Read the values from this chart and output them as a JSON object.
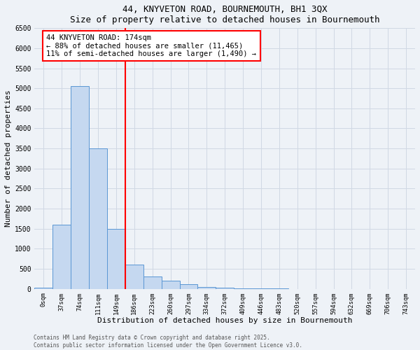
{
  "title1": "44, KNYVETON ROAD, BOURNEMOUTH, BH1 3QX",
  "title2": "Size of property relative to detached houses in Bournemouth",
  "xlabel": "Distribution of detached houses by size in Bournemouth",
  "ylabel": "Number of detached properties",
  "bar_labels": [
    "0sqm",
    "37sqm",
    "74sqm",
    "111sqm",
    "149sqm",
    "186sqm",
    "223sqm",
    "260sqm",
    "297sqm",
    "334sqm",
    "372sqm",
    "409sqm",
    "446sqm",
    "483sqm",
    "520sqm",
    "557sqm",
    "594sqm",
    "632sqm",
    "669sqm",
    "706sqm",
    "743sqm"
  ],
  "bar_heights": [
    30,
    1600,
    5050,
    3500,
    1500,
    600,
    300,
    200,
    120,
    50,
    30,
    15,
    8,
    3,
    0,
    0,
    0,
    0,
    0,
    0,
    0
  ],
  "bar_color": "#c5d8f0",
  "bar_edge_color": "#5a96d4",
  "vline_x_bin": 5,
  "vline_color": "red",
  "annotation_text": "44 KNYVETON ROAD: 174sqm\n← 88% of detached houses are smaller (11,465)\n11% of semi-detached houses are larger (1,490) →",
  "annotation_box_color": "white",
  "annotation_box_edge": "red",
  "ylim": [
    0,
    6500
  ],
  "ytick_interval": 500,
  "footer1": "Contains HM Land Registry data © Crown copyright and database right 2025.",
  "footer2": "Contains public sector information licensed under the Open Government Licence v3.0.",
  "background_color": "#eef2f7",
  "grid_color": "#d0d8e4"
}
